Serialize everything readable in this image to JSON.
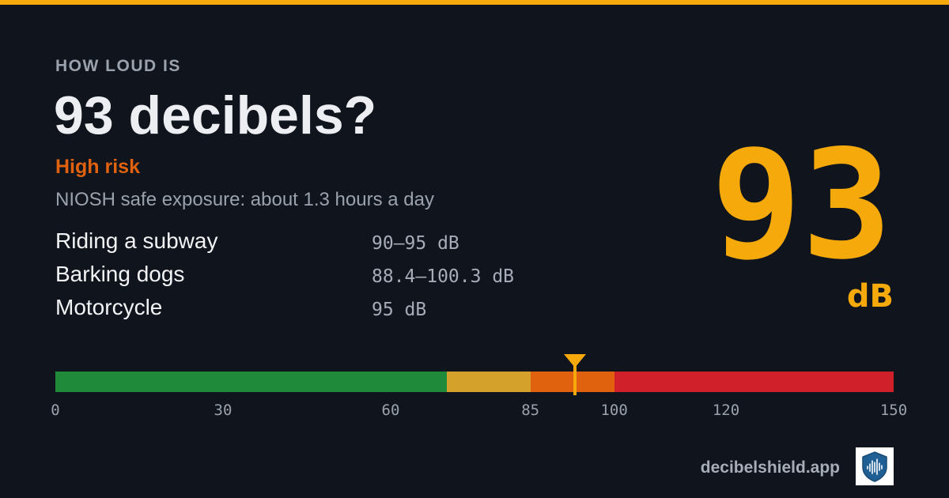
{
  "header": {
    "kicker": "HOW LOUD IS",
    "title": "93 decibels?",
    "risk_label": "High risk",
    "exposure_text": "NIOSH safe exposure: about 1.3 hours a day"
  },
  "examples": [
    {
      "name": "Riding a subway",
      "value": "90–95 dB"
    },
    {
      "name": "Barking dogs",
      "value": "88.4–100.3 dB"
    },
    {
      "name": "Motorcycle",
      "value": "95 dB"
    }
  ],
  "reading": {
    "value": "93",
    "value_num": 93,
    "unit": "dB"
  },
  "meter": {
    "min": 0,
    "max": 150,
    "segments": [
      {
        "from": 0,
        "to": 70,
        "color": "#1f8a3a"
      },
      {
        "from": 70,
        "to": 85,
        "color": "#d4a22a"
      },
      {
        "from": 85,
        "to": 100,
        "color": "#e0620f"
      },
      {
        "from": 100,
        "to": 150,
        "color": "#d0202a"
      }
    ],
    "tick_values": [
      0,
      30,
      60,
      85,
      100,
      120,
      150
    ],
    "tick_labels": [
      "0",
      "30",
      "60",
      "85",
      "100",
      "120",
      "150"
    ]
  },
  "colors": {
    "accent": "#f5a90a",
    "risk": "#e0620f",
    "background": "#10141c"
  },
  "footer": {
    "domain": "decibelshield.app",
    "logo_icon": "shield-soundwave-icon"
  }
}
